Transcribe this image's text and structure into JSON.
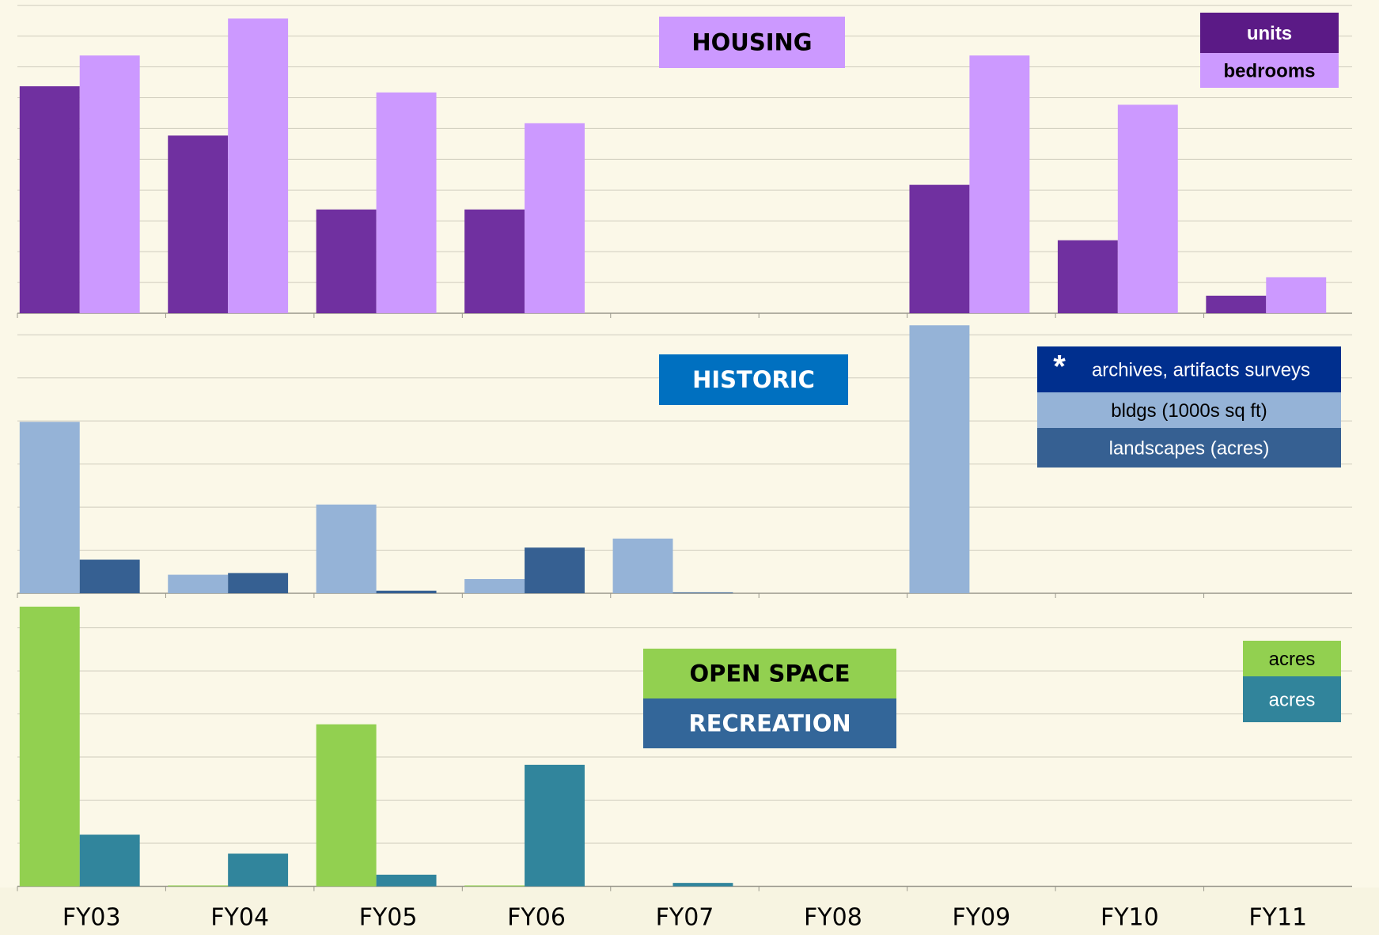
{
  "chart_data": [
    {
      "type": "bar",
      "title": "HOUSING",
      "title_color": "#cc99ff",
      "title_text_color": "#000000",
      "ylim": [
        0,
        10
      ],
      "yticks": [
        0,
        1,
        2,
        3,
        4,
        5,
        6,
        7,
        8,
        9,
        10
      ],
      "grid": true,
      "legend": "upper right",
      "series": [
        {
          "name": "units",
          "color": "#7030a0",
          "legend_color": "#5b1a86",
          "legend_text_color": "#ffffff",
          "values": [
            7.37,
            5.77,
            3.37,
            3.37,
            0,
            0,
            4.17,
            2.37,
            0.57
          ]
        },
        {
          "name": "bedrooms",
          "color": "#cc99ff",
          "legend_color": "#cc99ff",
          "legend_text_color": "#000000",
          "values": [
            8.37,
            9.57,
            7.17,
            6.17,
            0,
            0,
            8.37,
            6.77,
            1.17
          ]
        }
      ]
    },
    {
      "type": "bar",
      "title": "HISTORIC",
      "title_color": "#0070c0",
      "title_text_color": "#ffffff",
      "ylim": [
        0,
        6.5
      ],
      "yticks": [
        0,
        1,
        2,
        3,
        4,
        5,
        6
      ],
      "grid": true,
      "legend": "upper right",
      "legend_note": {
        "symbol": "*",
        "text": "archives, artifacts surveys",
        "color": "#002f8e",
        "text_color": "#ffffff"
      },
      "series": [
        {
          "name": "bldgs (1000s sq ft)",
          "color": "#95b3d7",
          "legend_color": "#95b3d7",
          "legend_text_color": "#000000",
          "values": [
            3.98,
            0.43,
            2.06,
            0.33,
            1.27,
            0,
            6.22,
            0,
            0
          ]
        },
        {
          "name": "landscapes (acres)",
          "color": "#366092",
          "legend_color": "#366092",
          "legend_text_color": "#ffffff",
          "values": [
            0.78,
            0.47,
            0.06,
            1.06,
            0.02,
            0,
            0,
            0,
            0
          ]
        }
      ]
    },
    {
      "type": "bar",
      "titles": [
        {
          "text": "OPEN SPACE",
          "color": "#92d050",
          "text_color": "#000000"
        },
        {
          "text": "RECREATION",
          "color": "#336699",
          "text_color": "#ffffff"
        }
      ],
      "ylim": [
        0,
        6.8
      ],
      "yticks": [
        0,
        1,
        2,
        3,
        4,
        5,
        6
      ],
      "grid": true,
      "legend": "upper right",
      "categories": [
        "FY03",
        "FY04",
        "FY05",
        "FY06",
        "FY07",
        "FY08",
        "FY09",
        "FY10",
        "FY11"
      ],
      "series": [
        {
          "name": "acres",
          "color": "#92d050",
          "legend_color": "#92d050",
          "legend_text_color": "#000000",
          "values": [
            6.49,
            0.02,
            3.76,
            0.02,
            0,
            0,
            0,
            0,
            0
          ]
        },
        {
          "name": "acres",
          "color": "#31859c",
          "legend_color": "#31849b",
          "legend_text_color": "#ffffff",
          "values": [
            1.2,
            0.76,
            0.27,
            2.82,
            0.08,
            0,
            0,
            0,
            0
          ]
        }
      ]
    }
  ]
}
